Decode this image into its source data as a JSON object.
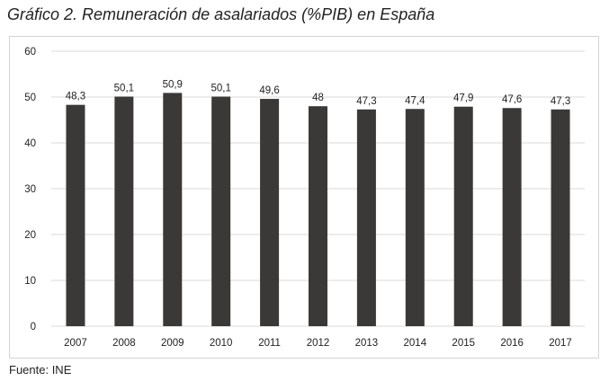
{
  "title": "Gráfico 2. Remuneración de asalariados (%PIB) en España",
  "source": "Fuente: INE",
  "colors": {
    "bar": "#3b3937",
    "grid": "#d9d9d9",
    "text": "#222222"
  },
  "chart_data": {
    "type": "bar",
    "title": "Gráfico 2. Remuneración de asalariados (%PIB) en España",
    "xlabel": "",
    "ylabel": "",
    "ylim": [
      0,
      60
    ],
    "yticks": [
      0,
      10,
      20,
      30,
      40,
      50,
      60
    ],
    "grid": true,
    "legend": "none",
    "categories": [
      "2007",
      "2008",
      "2009",
      "2010",
      "2011",
      "2012",
      "2013",
      "2014",
      "2015",
      "2016",
      "2017"
    ],
    "values": [
      48.3,
      50.1,
      50.9,
      50.1,
      49.6,
      48,
      47.3,
      47.4,
      47.9,
      47.6,
      47.3
    ],
    "value_labels": [
      "48,3",
      "50,1",
      "50,9",
      "50,1",
      "49,6",
      "48",
      "47,3",
      "47,4",
      "47,9",
      "47,6",
      "47,3"
    ]
  }
}
